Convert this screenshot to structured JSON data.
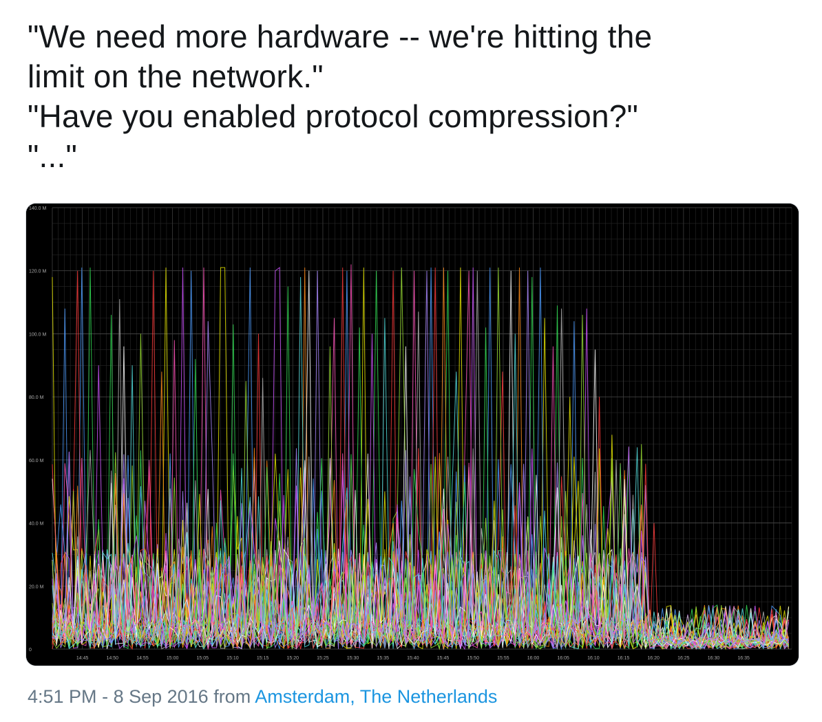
{
  "tweet": {
    "lines": [
      "\"We need more hardware -- we're hitting the",
      "limit on the network.\"",
      "\"Have you enabled protocol compression?\"",
      "\"...\""
    ]
  },
  "meta": {
    "time": "4:51 PM",
    "separator": " - ",
    "date": "8 Sep 2016",
    "from": " from ",
    "location": "Amsterdam, The Netherlands"
  },
  "chart_data": {
    "type": "line",
    "background": "#000000",
    "grid": true,
    "ylim": [
      0,
      140
    ],
    "y_ticks": [
      {
        "value": 0,
        "label": "0"
      },
      {
        "value": 20,
        "label": "20.0 M"
      },
      {
        "value": 40,
        "label": "40.0 M"
      },
      {
        "value": 60,
        "label": "60.0 M"
      },
      {
        "value": 80,
        "label": "80.0 M"
      },
      {
        "value": 100,
        "label": "100.0 M"
      },
      {
        "value": 120,
        "label": "120.0 M"
      },
      {
        "value": 140,
        "label": "140.0 M"
      }
    ],
    "x_ticks": [
      "14:45",
      "14:50",
      "14:55",
      "15:00",
      "15:05",
      "15:10",
      "15:15",
      "15:20",
      "15:25",
      "15:30",
      "15:35",
      "15:40",
      "15:45",
      "15:50",
      "15:55",
      "16:00",
      "16:05",
      "16:10",
      "16:15",
      "16:20",
      "16:25",
      "16:30",
      "16:35"
    ],
    "x_range_minutes": [
      -5,
      118
    ],
    "series_colors": [
      "#e6e600",
      "#4d9cff",
      "#ff3c3c",
      "#33dd55",
      "#cc55ff",
      "#ff8c1a",
      "#ffffff",
      "#ff55bb",
      "#55e0e0",
      "#b0b0b0",
      "#99dd33",
      "#aa88ff"
    ],
    "peaks": [
      {
        "t": -5,
        "v": 118,
        "c": 0
      },
      {
        "t": -3,
        "v": 108,
        "c": 1
      },
      {
        "t": -1,
        "v": 120,
        "c": 2
      },
      {
        "t": 0,
        "v": 121,
        "c": 1
      },
      {
        "t": 1,
        "v": 121,
        "c": 3
      },
      {
        "t": 3,
        "v": 90,
        "c": 4
      },
      {
        "t": 5,
        "v": 106,
        "c": 3
      },
      {
        "t": 6,
        "v": 111,
        "c": 9
      },
      {
        "t": 7,
        "v": 96,
        "c": 6
      },
      {
        "t": 8,
        "v": 90,
        "c": 8
      },
      {
        "t": 10,
        "v": 100,
        "c": 10
      },
      {
        "t": 12,
        "v": 120,
        "c": 2
      },
      {
        "t": 13,
        "v": 88,
        "c": 5
      },
      {
        "t": 14,
        "v": 121,
        "c": 0
      },
      {
        "t": 15,
        "v": 98,
        "c": 7
      },
      {
        "t": 17,
        "v": 121,
        "c": 4
      },
      {
        "t": 18,
        "v": 120,
        "c": 1
      },
      {
        "t": 19,
        "v": 92,
        "c": 3
      },
      {
        "t": 20,
        "v": 121,
        "c": 7
      },
      {
        "t": 21,
        "v": 104,
        "c": 11
      },
      {
        "t": 23,
        "v": 121,
        "c": 0
      },
      {
        "t": 24,
        "v": 121,
        "c": 0
      },
      {
        "t": 25,
        "v": 103,
        "c": 3
      },
      {
        "t": 27,
        "v": 85,
        "c": 10
      },
      {
        "t": 28,
        "v": 121,
        "c": 1
      },
      {
        "t": 29,
        "v": 100,
        "c": 2
      },
      {
        "t": 30,
        "v": 86,
        "c": 9
      },
      {
        "t": 32,
        "v": 120,
        "c": 4
      },
      {
        "t": 33,
        "v": 121,
        "c": 4
      },
      {
        "t": 34,
        "v": 115,
        "c": 3
      },
      {
        "t": 36,
        "v": 118,
        "c": 8
      },
      {
        "t": 37,
        "v": 121,
        "c": 5
      },
      {
        "t": 38,
        "v": 120,
        "c": 6
      },
      {
        "t": 39,
        "v": 120,
        "c": 11
      },
      {
        "t": 41,
        "v": 96,
        "c": 10
      },
      {
        "t": 42,
        "v": 105,
        "c": 7
      },
      {
        "t": 43,
        "v": 121,
        "c": 2
      },
      {
        "t": 44,
        "v": 120,
        "c": 1
      },
      {
        "t": 45,
        "v": 122,
        "c": 7
      },
      {
        "t": 46,
        "v": 102,
        "c": 3
      },
      {
        "t": 47,
        "v": 121,
        "c": 0
      },
      {
        "t": 48,
        "v": 100,
        "c": 4
      },
      {
        "t": 49,
        "v": 120,
        "c": 3
      },
      {
        "t": 50,
        "v": 105,
        "c": 8
      },
      {
        "t": 52,
        "v": 120,
        "c": 2
      },
      {
        "t": 53,
        "v": 121,
        "c": 10
      },
      {
        "t": 54,
        "v": 96,
        "c": 6
      },
      {
        "t": 55,
        "v": 120,
        "c": 7
      },
      {
        "t": 56,
        "v": 107,
        "c": 9
      },
      {
        "t": 57,
        "v": 120,
        "c": 11
      },
      {
        "t": 58,
        "v": 121,
        "c": 1
      },
      {
        "t": 59,
        "v": 121,
        "c": 2
      },
      {
        "t": 60,
        "v": 121,
        "c": 5
      },
      {
        "t": 61,
        "v": 120,
        "c": 3
      },
      {
        "t": 62,
        "v": 88,
        "c": 8
      },
      {
        "t": 63,
        "v": 121,
        "c": 0
      },
      {
        "t": 64,
        "v": 120,
        "c": 7
      },
      {
        "t": 65,
        "v": 121,
        "c": 4
      },
      {
        "t": 66,
        "v": 120,
        "c": 9
      },
      {
        "t": 67,
        "v": 102,
        "c": 3
      },
      {
        "t": 68,
        "v": 121,
        "c": 1
      },
      {
        "t": 69,
        "v": 121,
        "c": 10
      },
      {
        "t": 70,
        "v": 88,
        "c": 2
      },
      {
        "t": 71,
        "v": 120,
        "c": 6
      },
      {
        "t": 72,
        "v": 100,
        "c": 8
      },
      {
        "t": 73,
        "v": 121,
        "c": 5
      },
      {
        "t": 74,
        "v": 120,
        "c": 11
      },
      {
        "t": 75,
        "v": 118,
        "c": 3
      },
      {
        "t": 76,
        "v": 121,
        "c": 1
      },
      {
        "t": 77,
        "v": 105,
        "c": 0
      },
      {
        "t": 78,
        "v": 96,
        "c": 7
      },
      {
        "t": 79,
        "v": 109,
        "c": 3
      },
      {
        "t": 80,
        "v": 108,
        "c": 9
      },
      {
        "t": 81,
        "v": 80,
        "c": 0
      },
      {
        "t": 82,
        "v": 104,
        "c": 1
      },
      {
        "t": 83,
        "v": 106,
        "c": 10
      },
      {
        "t": 84,
        "v": 108,
        "c": 4
      },
      {
        "t": 85,
        "v": 95,
        "c": 6
      },
      {
        "t": 86,
        "v": 80,
        "c": 2
      },
      {
        "t": 88,
        "v": 68,
        "c": 0
      },
      {
        "t": 89,
        "v": 60,
        "c": 9
      },
      {
        "t": 90,
        "v": 55,
        "c": 5
      },
      {
        "t": 91,
        "v": 64,
        "c": 3
      },
      {
        "t": 92,
        "v": 64,
        "c": 8
      },
      {
        "t": 93,
        "v": 65,
        "c": 10
      },
      {
        "t": 94,
        "v": 52,
        "c": 11
      },
      {
        "t": 95,
        "v": 40,
        "c": 2
      }
    ]
  }
}
